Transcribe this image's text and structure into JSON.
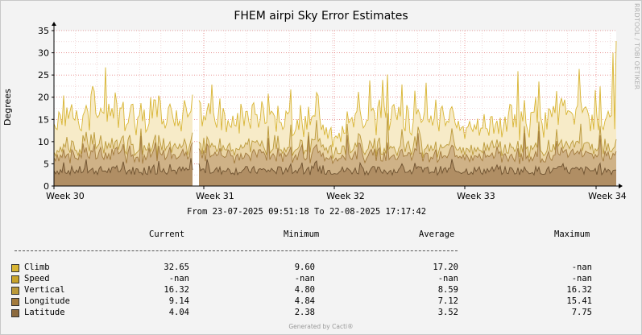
{
  "window": {
    "title": "FHEM airpi Sky Error Estimates",
    "vertical_label": "RRDTOOL / TOBI OETIKER",
    "footer": "Generated by Cacti®"
  },
  "chart_data": {
    "type": "area",
    "title": "FHEM airpi Sky Error Estimates",
    "ylabel": "Degrees",
    "ylim": [
      0,
      35
    ],
    "y_ticks": [
      "0",
      "5",
      "10",
      "15",
      "20",
      "25",
      "30",
      "35"
    ],
    "x_ticks": [
      "Week 30",
      "Week 31",
      "Week 32",
      "Week 33",
      "Week 34"
    ],
    "grid": true,
    "range_text": "From 23-07-2025 09:51:18 To 22-08-2025 17:17:42",
    "series": [
      {
        "name": "Climb",
        "color": "#d8b534",
        "current": "32.65",
        "minimum": "9.60",
        "average": "17.20",
        "maximum": "-nan"
      },
      {
        "name": "Speed",
        "color": "#c8a32a",
        "current": "-nan",
        "minimum": "-nan",
        "average": "-nan",
        "maximum": "-nan"
      },
      {
        "name": "Vertical",
        "color": "#bb9a3a",
        "current": "16.32",
        "minimum": "4.80",
        "average": "8.59",
        "maximum": "16.32"
      },
      {
        "name": "Longitude",
        "color": "#a27a3c",
        "current": "9.14",
        "minimum": "4.84",
        "average": "7.12",
        "maximum": "15.41"
      },
      {
        "name": "Latitude",
        "color": "#8c6a3e",
        "current": "4.04",
        "minimum": "2.38",
        "average": "3.52",
        "maximum": "7.75"
      }
    ],
    "legend_headers": {
      "current": "Current",
      "minimum": "Minimum",
      "average": "Average",
      "maximum": "Maximum"
    }
  }
}
